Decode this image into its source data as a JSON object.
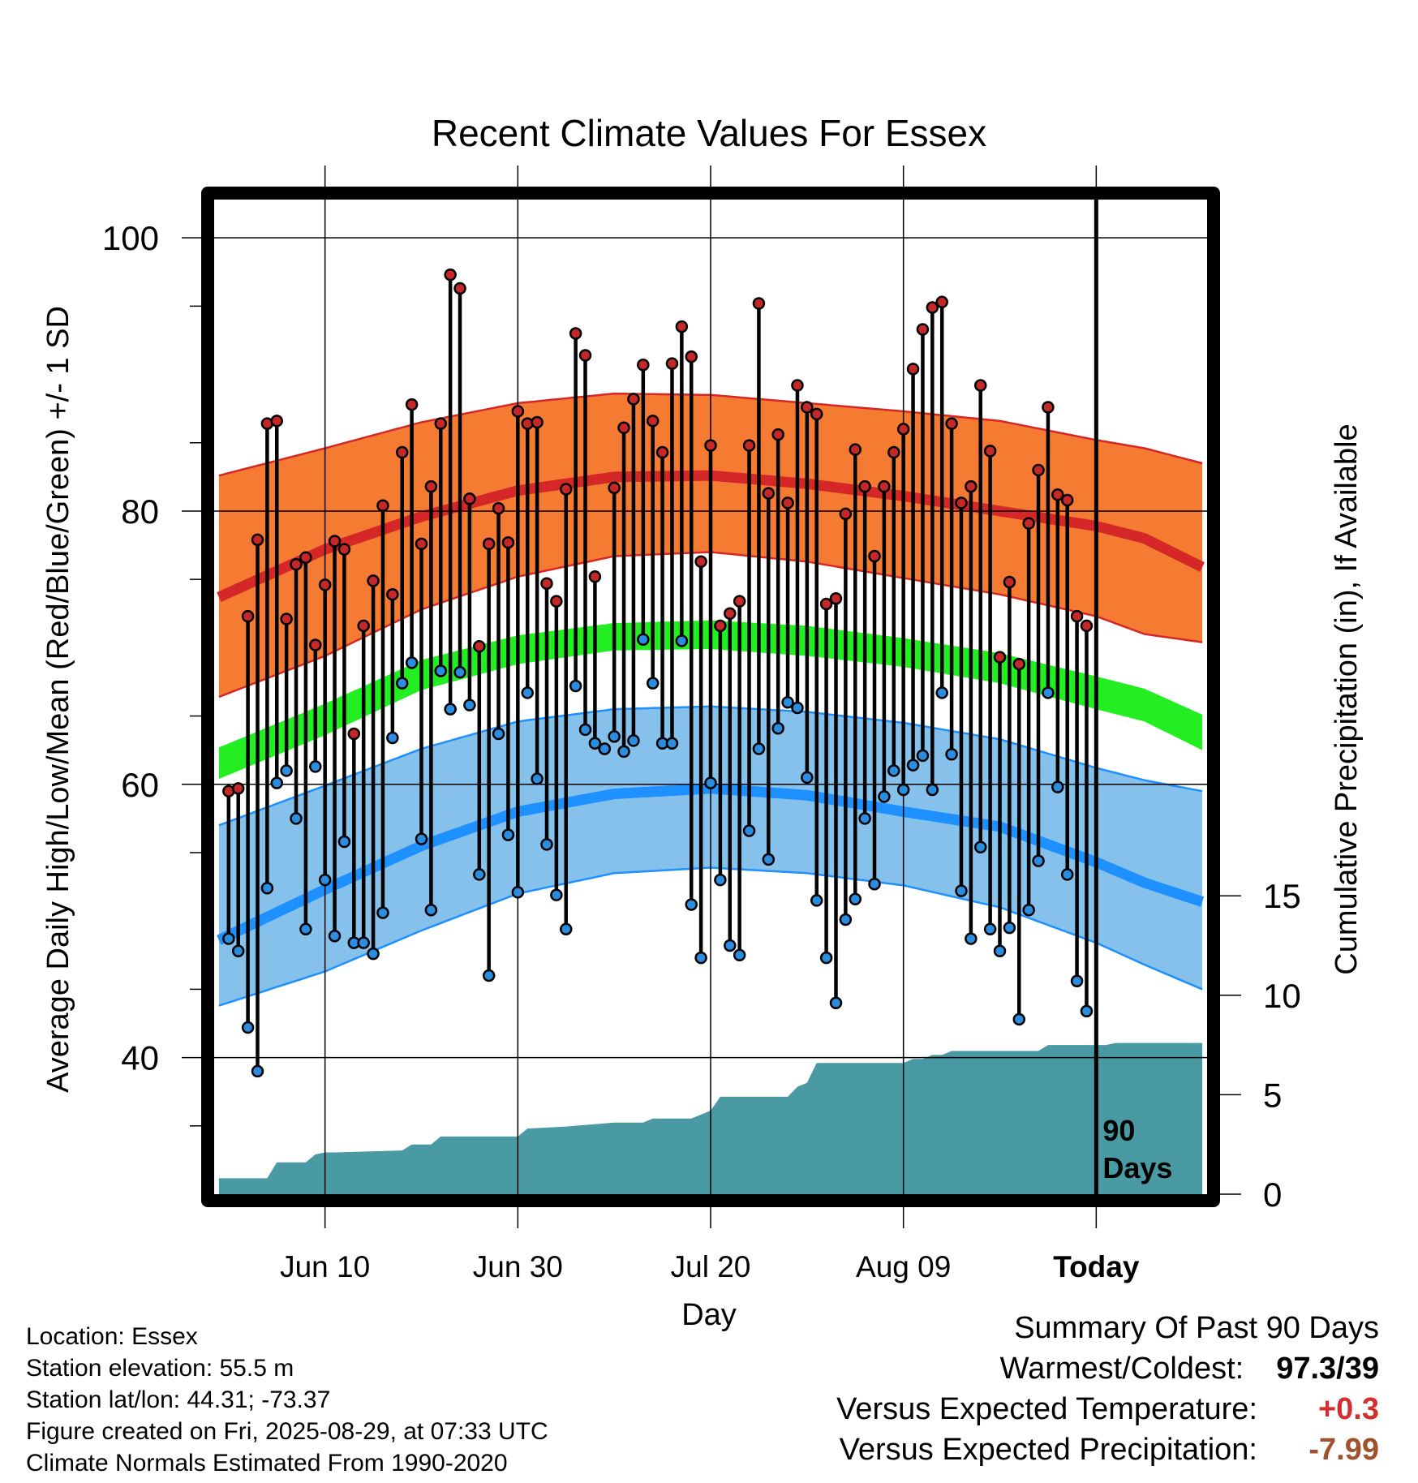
{
  "chart_data": {
    "type": "line",
    "title": "Recent Climate Values For Essex",
    "xlabel": "Day",
    "ylabel": "Average Daily High/Low/Mean (Red/Blue/Green) +/- 1 SD",
    "ylabel_right": "Cumulative Precipitation (in), If Available",
    "ylim": [
      30,
      102.8
    ],
    "ylim_right": [
      0,
      50
    ],
    "yticks": [
      100,
      80,
      60,
      40
    ],
    "yticks_right": [
      15,
      10,
      5,
      0
    ],
    "xlim": [
      -11.5,
      91.5
    ],
    "xticks": [
      {
        "pos": 0,
        "label": "Jun 10"
      },
      {
        "pos": 20,
        "label": "Jun 30"
      },
      {
        "pos": 40,
        "label": "Jul 20"
      },
      {
        "pos": 60,
        "label": "Aug 09"
      },
      {
        "pos": 80,
        "label": "Today"
      }
    ],
    "today_marker": 80,
    "today_label": "90 Days",
    "grid": true,
    "colors": {
      "high_normal": "#d62728",
      "high_band": "#f47b31",
      "low_normal": "#1e90ff",
      "low_band": "#85c1ea",
      "mean_normal": "#22ee22",
      "precip_fill": "#4a9aa4",
      "observed_high_marker": "#c62828",
      "observed_low_marker": "#2b8de0"
    },
    "normals": {
      "x": [
        -11,
        0,
        10,
        20,
        30,
        40,
        50,
        60,
        70,
        80,
        85,
        91
      ],
      "high": [
        73.7,
        77.2,
        79.6,
        81.5,
        82.5,
        82.6,
        82.0,
        81.1,
        80.0,
        78.9,
        78.0,
        75.9
      ],
      "high_sd_upper": [
        82.6,
        84.6,
        86.5,
        87.9,
        88.6,
        88.5,
        87.9,
        87.3,
        86.6,
        85.2,
        84.6,
        83.5
      ],
      "high_sd_lower": [
        66.4,
        69.4,
        72.8,
        75.2,
        76.7,
        77.0,
        76.3,
        75.1,
        73.9,
        72.3,
        71.0,
        70.4
      ],
      "low": [
        48.6,
        52.3,
        55.5,
        58.0,
        59.3,
        59.7,
        59.2,
        58.0,
        56.9,
        54.3,
        52.8,
        51.4
      ],
      "low_sd_upper": [
        57.0,
        59.9,
        62.6,
        64.6,
        65.5,
        65.7,
        65.3,
        64.5,
        63.3,
        61.2,
        60.3,
        59.5
      ],
      "low_sd_lower": [
        43.8,
        46.3,
        49.3,
        52.0,
        53.5,
        53.9,
        53.5,
        52.6,
        51.0,
        48.4,
        46.8,
        45.0
      ],
      "mean": [
        61.4,
        64.7,
        67.9,
        69.8,
        70.8,
        71.0,
        70.5,
        69.5,
        68.4,
        66.6,
        65.8,
        63.9
      ],
      "mean_sd_upper": [
        62.7,
        65.9,
        69.1,
        70.9,
        71.8,
        72.0,
        71.6,
        70.7,
        69.6,
        67.9,
        67.0,
        65.1
      ],
      "mean_sd_lower": [
        60.4,
        63.6,
        66.9,
        68.8,
        69.8,
        69.9,
        69.4,
        68.6,
        67.4,
        65.5,
        64.6,
        62.5
      ]
    },
    "observed": {
      "x": [
        -10,
        -9,
        -8,
        -7,
        -6,
        -5,
        -4,
        -3,
        -2,
        -1,
        0,
        1,
        2,
        3,
        4,
        5,
        6,
        7,
        8,
        9,
        10,
        11,
        12,
        13,
        14,
        15,
        16,
        17,
        18,
        19,
        20,
        21,
        22,
        23,
        24,
        25,
        26,
        27,
        28,
        29,
        30,
        31,
        32,
        33,
        34,
        35,
        36,
        37,
        38,
        39,
        40,
        41,
        42,
        43,
        44,
        45,
        46,
        47,
        48,
        49,
        50,
        51,
        52,
        53,
        54,
        55,
        56,
        57,
        58,
        59,
        60,
        61,
        62,
        63,
        64,
        65,
        66,
        67,
        68,
        69,
        70,
        71,
        72,
        73,
        74,
        75,
        76,
        77,
        78,
        79
      ],
      "high": [
        59.5,
        59.7,
        72.3,
        77.9,
        86.4,
        86.6,
        72.1,
        76.1,
        76.6,
        70.2,
        74.6,
        77.8,
        77.2,
        63.7,
        71.6,
        74.9,
        80.4,
        73.9,
        84.3,
        87.8,
        77.6,
        81.8,
        86.4,
        97.3,
        96.3,
        80.9,
        70.1,
        77.6,
        80.2,
        77.7,
        87.3,
        86.4,
        86.5,
        74.7,
        73.4,
        81.6,
        93.0,
        91.4,
        75.2,
        62.6,
        81.7,
        86.1,
        88.2,
        90.7,
        86.6,
        84.3,
        90.8,
        93.5,
        91.3,
        76.3,
        84.8,
        71.6,
        72.5,
        73.4,
        84.8,
        95.2,
        81.3,
        85.6,
        80.6,
        89.2,
        87.6,
        87.1,
        73.2,
        73.6,
        79.8,
        84.5,
        81.8,
        76.7,
        81.8,
        84.3,
        86.0,
        90.4,
        93.3,
        94.9,
        95.3,
        86.4,
        80.6,
        81.8,
        89.2,
        84.4,
        69.3,
        74.8,
        68.8,
        79.1,
        83.0,
        87.6,
        81.2,
        80.8,
        72.3,
        71.6
      ],
      "low": [
        48.7,
        47.8,
        42.2,
        39.0,
        52.4,
        60.1,
        61.0,
        57.5,
        49.4,
        61.3,
        53.0,
        48.9,
        55.8,
        48.4,
        48.4,
        47.6,
        50.6,
        63.4,
        67.4,
        68.9,
        56.0,
        50.8,
        68.3,
        65.5,
        68.2,
        65.8,
        53.4,
        46.0,
        63.7,
        56.3,
        52.1,
        66.7,
        60.4,
        55.6,
        51.9,
        49.4,
        67.2,
        64.0,
        63.0,
        62.6,
        63.5,
        62.4,
        63.2,
        70.6,
        67.4,
        63.0,
        63.0,
        70.5,
        51.2,
        47.3,
        60.1,
        53.0,
        48.2,
        47.5,
        56.6,
        62.6,
        54.5,
        64.1,
        66.0,
        65.6,
        60.5,
        51.5,
        47.3,
        44.0,
        50.1,
        51.6,
        57.5,
        52.7,
        59.1,
        61.0,
        59.6,
        61.4,
        62.1,
        59.6,
        66.7,
        62.2,
        52.2,
        48.7,
        55.4,
        49.4,
        47.8,
        49.5,
        42.8,
        50.8,
        54.4,
        66.7,
        59.8,
        53.4,
        45.6,
        43.4
      ]
    },
    "precipitation": {
      "x": [
        -11,
        -6,
        -5,
        -2,
        -1,
        0,
        1,
        8,
        9,
        11,
        12,
        20,
        21,
        25,
        30,
        33,
        34,
        38,
        39,
        40,
        41,
        48,
        49,
        50,
        51,
        60,
        61,
        62,
        63,
        64,
        65,
        74,
        75,
        81,
        82,
        91
      ],
      "cumulative": [
        0.8,
        0.8,
        1.6,
        1.6,
        2.0,
        2.1,
        2.1,
        2.2,
        2.5,
        2.5,
        2.9,
        2.9,
        3.3,
        3.4,
        3.6,
        3.6,
        3.8,
        3.8,
        4.0,
        4.2,
        4.9,
        4.9,
        5.4,
        5.6,
        6.6,
        6.6,
        6.8,
        6.8,
        7.0,
        7.0,
        7.2,
        7.2,
        7.5,
        7.5,
        7.6,
        7.6
      ]
    }
  },
  "footer": {
    "location": "Location: Essex",
    "elevation": "Station elevation: 55.5 m",
    "latlon": "Station lat/lon: 44.31; -73.37",
    "created": "Figure created on Fri, 2025-08-29, at 07:33 UTC",
    "normals_period": "Climate Normals Estimated From 1990-2020"
  },
  "summary": {
    "title": "Summary Of Past 90 Days",
    "warmest_coldest_label": "Warmest/Coldest:",
    "warmest_coldest_value": "97.3/39",
    "temp_label": "Versus Expected Temperature:",
    "temp_value": "+0.3",
    "temp_color": "#d32f2f",
    "precip_label": "Versus Expected Precipitation:",
    "precip_value": "-7.99",
    "precip_color": "#a0522d"
  }
}
